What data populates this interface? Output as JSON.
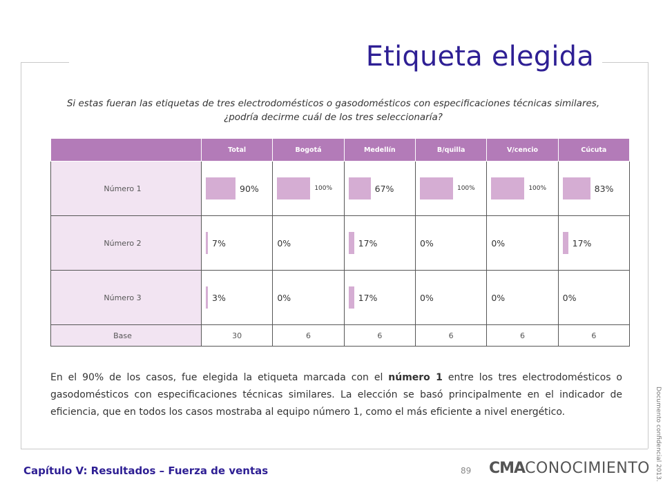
{
  "page": {
    "title": "Etiqueta elegida",
    "question": "Si estas fueran las etiquetas de tres electrodomésticos o gasodomésticos con especificaciones técnicas similares, ¿podría decirme cuál de los tres seleccionaría?",
    "body_parts": {
      "before": "En el 90% de los casos, fue elegida la etiqueta marcada con el ",
      "bold": "número 1",
      "after": " entre los tres electrodomésticos o gasodomésticos con especificaciones técnicas similares. La elección se basó principalmente en el indicador de eficiencia, que en todos los casos mostraba al equipo número 1, como el más eficiente a nivel energético."
    },
    "chapter": "Capítulo V: Resultados – Fuerza de ventas",
    "page_number": "89",
    "logo_bold": "CMA",
    "logo_rest": "CONOCIMIENTO",
    "side_note": "Documento confidencial 2013.",
    "bar_color": "#d5add3",
    "header_color": "#b37bb8",
    "rowlabel_color": "#f2e4f2",
    "title_color": "#2e1f94"
  },
  "chart_data": {
    "type": "table",
    "columns": [
      "Total",
      "Bogotá",
      "Medellín",
      "B/quilla",
      "V/cencio",
      "Cúcuta"
    ],
    "rows": [
      {
        "label": "Número 1",
        "values": [
          90,
          100,
          67,
          100,
          100,
          83
        ],
        "labels": [
          "90%",
          "100%",
          "67%",
          "100%",
          "100%",
          "83%"
        ]
      },
      {
        "label": "Número 2",
        "values": [
          7,
          0,
          17,
          0,
          0,
          17
        ],
        "labels": [
          "7%",
          "0%",
          "17%",
          "0%",
          "0%",
          "17%"
        ]
      },
      {
        "label": "Número 3",
        "values": [
          3,
          0,
          17,
          0,
          0,
          0
        ],
        "labels": [
          "3%",
          "0%",
          "17%",
          "0%",
          "0%",
          "0%"
        ]
      }
    ],
    "base": {
      "label": "Base",
      "values": [
        "30",
        "6",
        "6",
        "6",
        "6",
        "6"
      ]
    }
  }
}
